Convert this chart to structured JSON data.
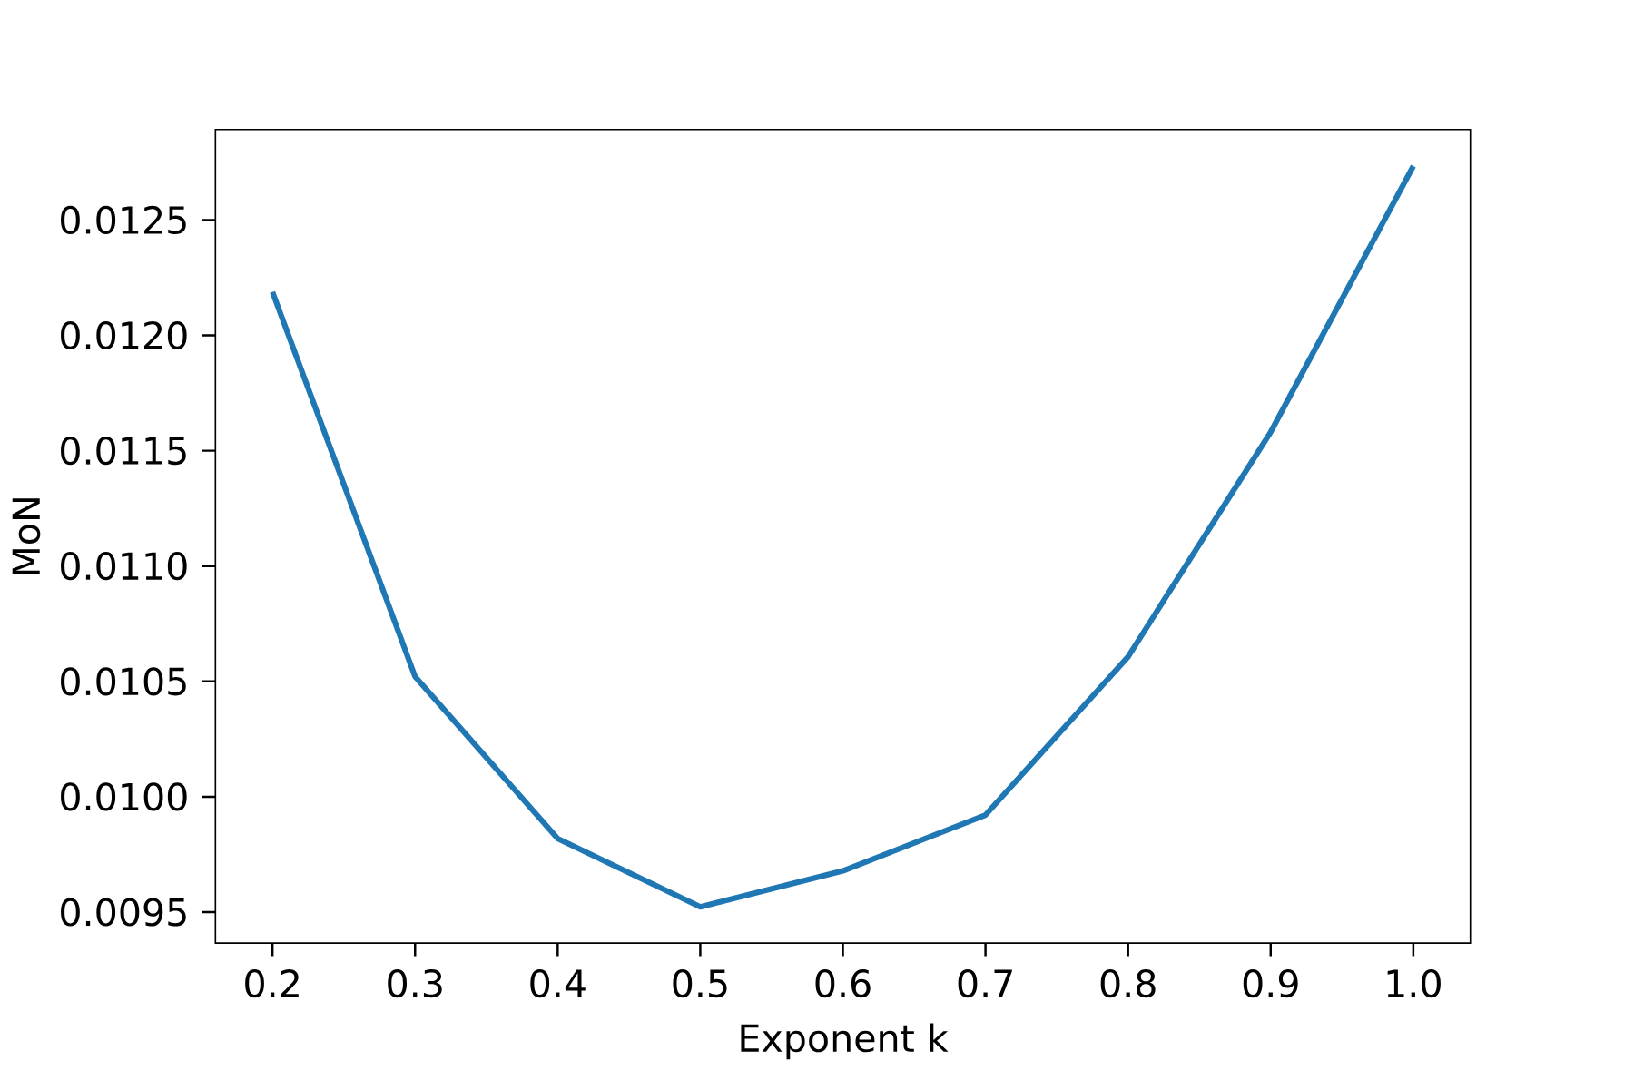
{
  "chart_data": {
    "type": "line",
    "xlabel": "Exponent k",
    "ylabel": "MoN",
    "x": [
      0.2,
      0.3,
      0.4,
      0.5,
      0.6,
      0.7,
      0.8,
      0.9,
      1.0
    ],
    "series": [
      {
        "color": "#1f77b4",
        "values": [
          0.012188,
          0.010521,
          0.009819,
          0.009523,
          0.009679,
          0.009921,
          0.010607,
          0.011581,
          0.012734
        ]
      }
    ],
    "xlim": [
      0.16,
      1.04
    ],
    "ylim": [
      0.009366,
      0.012892
    ],
    "xticks": [
      {
        "value": 0.2,
        "label": "0.2"
      },
      {
        "value": 0.3,
        "label": "0.3"
      },
      {
        "value": 0.4,
        "label": "0.4"
      },
      {
        "value": 0.5,
        "label": "0.5"
      },
      {
        "value": 0.6,
        "label": "0.6"
      },
      {
        "value": 0.7,
        "label": "0.7"
      },
      {
        "value": 0.8,
        "label": "0.8"
      },
      {
        "value": 0.9,
        "label": "0.9"
      },
      {
        "value": 1.0,
        "label": "1.0"
      }
    ],
    "yticks": [
      {
        "value": 0.0095,
        "label": "0.0095"
      },
      {
        "value": 0.01,
        "label": "0.0100"
      },
      {
        "value": 0.0105,
        "label": "0.0105"
      },
      {
        "value": 0.011,
        "label": "0.0110"
      },
      {
        "value": 0.0115,
        "label": "0.0115"
      },
      {
        "value": 0.012,
        "label": "0.0120"
      },
      {
        "value": 0.0125,
        "label": "0.0125"
      }
    ],
    "marker": "none",
    "line_style": "solid"
  }
}
